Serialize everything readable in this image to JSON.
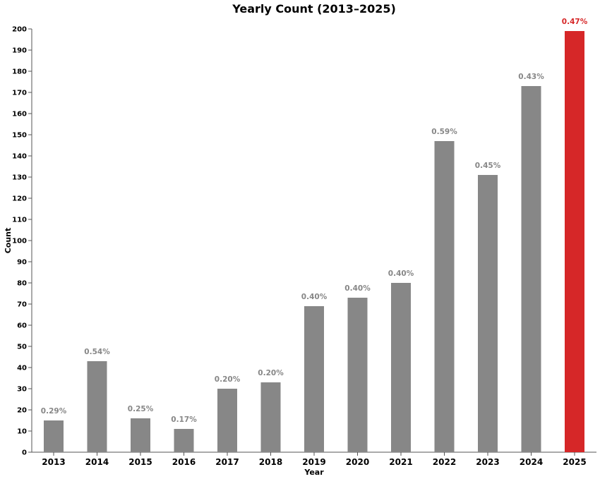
{
  "chart_data": {
    "type": "bar",
    "title": "Yearly Count (2013–2025)",
    "xlabel": "Year",
    "ylabel": "Count",
    "ylim": [
      0,
      200
    ],
    "ytick_step": 10,
    "grid": false,
    "categories": [
      "2013",
      "2014",
      "2015",
      "2016",
      "2017",
      "2018",
      "2019",
      "2020",
      "2021",
      "2022",
      "2023",
      "2024",
      "2025"
    ],
    "values": [
      15,
      43,
      16,
      11,
      30,
      33,
      69,
      73,
      80,
      147,
      131,
      173,
      199
    ],
    "data_labels": [
      "0.29%",
      "0.54%",
      "0.25%",
      "0.17%",
      "0.20%",
      "0.20%",
      "0.40%",
      "0.40%",
      "0.40%",
      "0.59%",
      "0.45%",
      "0.43%",
      "0.47%"
    ],
    "bar_color": "#878787",
    "highlight_color": "#d62728",
    "highlight_index": 12
  }
}
